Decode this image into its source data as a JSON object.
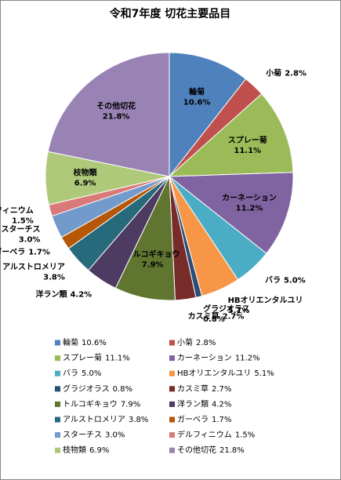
{
  "chart_data": {
    "type": "pie",
    "title": "令和7年度 切花主要品目",
    "categories": [
      "輪菊",
      "小菊",
      "スプレー菊",
      "カーネーション",
      "バラ",
      "HBオリエンタルユリ",
      "グラジオラス",
      "カスミ草",
      "トルコギキョウ",
      "洋ラン類",
      "アルストロメリア",
      "ガーベラ",
      "スターチス",
      "デルフィニウム",
      "枝物類",
      "その他切花"
    ],
    "values": [
      10.6,
      2.8,
      11.1,
      11.2,
      5.0,
      5.1,
      0.8,
      2.7,
      7.9,
      4.2,
      3.8,
      1.7,
      3.0,
      1.5,
      6.9,
      21.8
    ],
    "value_labels": [
      "10.6%",
      "2.8%",
      "11.1%",
      "11.2%",
      "5.0%",
      "5.1%",
      "0.8%",
      "2.7%",
      "7.9%",
      "4.2%",
      "3.8%",
      "1.7%",
      "3.0%",
      "1.5%",
      "6.9%",
      "21.8%"
    ],
    "colors": [
      "#4f81bd",
      "#c0504d",
      "#9bbb59",
      "#8064a2",
      "#4bacc6",
      "#f79646",
      "#2c4d75",
      "#772c2a",
      "#5f7530",
      "#4d3b62",
      "#276a7c",
      "#b65708",
      "#729aca",
      "#d9797a",
      "#afc97a",
      "#9983b5"
    ]
  }
}
